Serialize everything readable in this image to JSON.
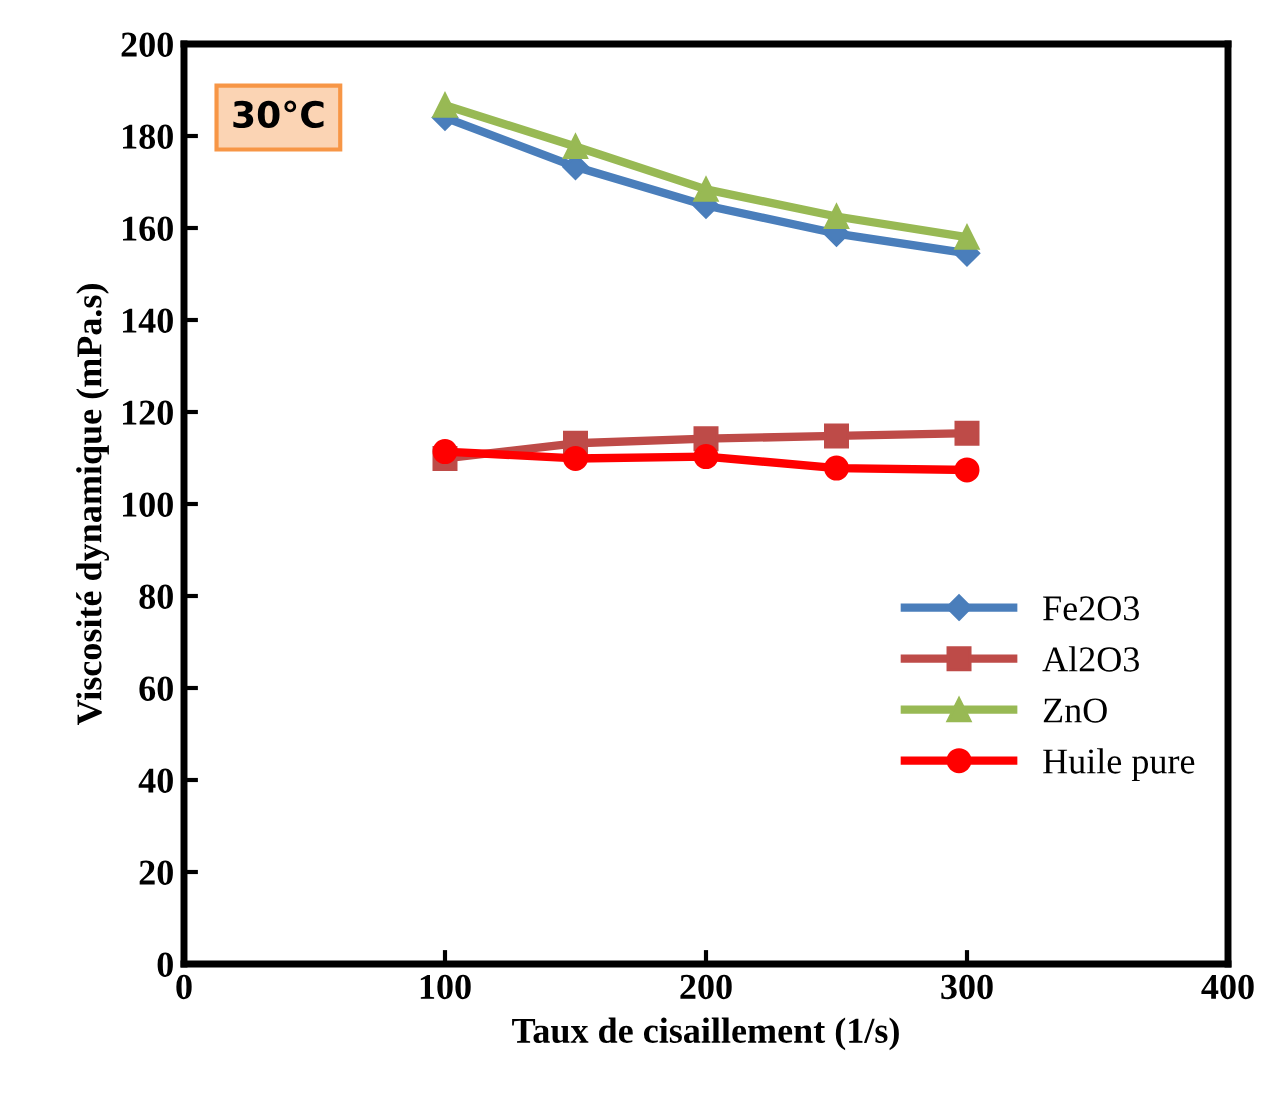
{
  "chart_data": {
    "type": "line",
    "xlabel": "Taux de cisaillement (1/s)",
    "ylabel": "Viscosité dynamique (mPa.s)",
    "annotations": [
      "30°C"
    ],
    "x": [
      100,
      150,
      200,
      250,
      300
    ],
    "series": [
      {
        "name": "Fe2O3",
        "color": "#4a7ebb",
        "marker": "diamond",
        "values": [
          184,
          173.3,
          164.9,
          158.8,
          154.5
        ]
      },
      {
        "name": "Al2O3",
        "color": "#be4b48",
        "marker": "square",
        "values": [
          109.9,
          113.2,
          114.2,
          114.8,
          115.4
        ]
      },
      {
        "name": "ZnO",
        "color": "#98b954",
        "marker": "triangle",
        "values": [
          186.7,
          177.7,
          168.4,
          162.5,
          158
        ]
      },
      {
        "name": "Huile pure",
        "color": "#ff0000",
        "marker": "circle",
        "values": [
          111.4,
          109.9,
          110.3,
          107.8,
          107.4
        ]
      }
    ],
    "xlim": [
      0,
      400
    ],
    "xticks": [
      0,
      100,
      200,
      300,
      400
    ],
    "ylim": [
      0,
      200
    ],
    "yticks": [
      0,
      20,
      40,
      60,
      80,
      100,
      120,
      140,
      160,
      180,
      200
    ],
    "grid": false,
    "legend": "right",
    "line_style": "solid"
  }
}
